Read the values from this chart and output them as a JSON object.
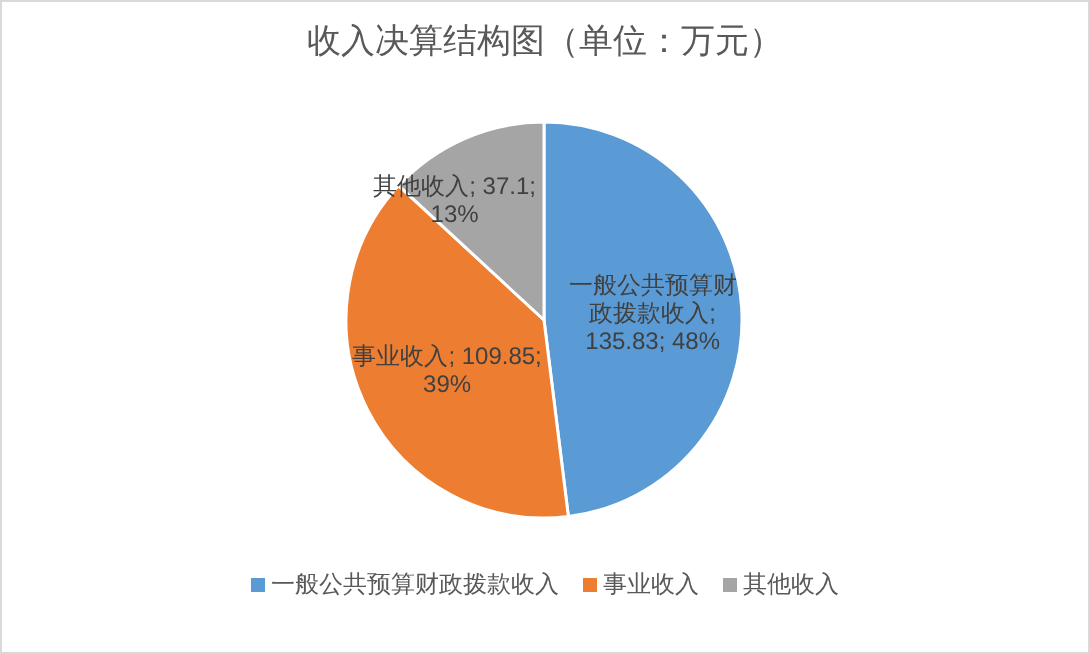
{
  "chart_data": {
    "type": "pie",
    "title": "收入决算结构图（单位：万元）",
    "categories": [
      "一般公共预算财政拨款收入",
      "事业收入",
      "其他收入"
    ],
    "values": [
      135.83,
      109.85,
      37.1
    ],
    "colors": [
      "#5b9bd5",
      "#ed7d31",
      "#a5a5a5"
    ],
    "value_labels": [
      "一般公共预算财政拨款收入; 135.83; 48%",
      "事业收入; 109.85; 39%",
      "其他收入; 37.1; 13%"
    ],
    "legend": "bottom"
  }
}
